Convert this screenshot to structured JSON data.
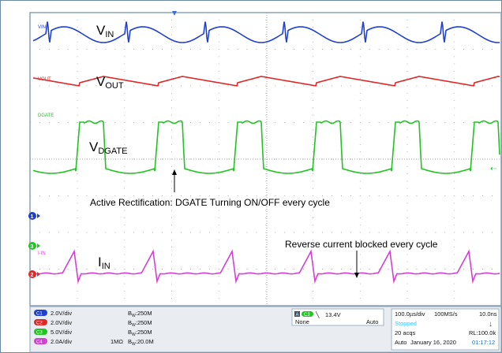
{
  "channels": [
    {
      "id": "C1",
      "color": "#1f3fcf",
      "text_color": "#ffffff",
      "scale": "2.0V/div",
      "coupling": "",
      "bw": "250M"
    },
    {
      "id": "C2",
      "color": "#e02828",
      "text_color": "#ffffff",
      "scale": "2.0V/div",
      "coupling": "",
      "bw": "250M"
    },
    {
      "id": "C3",
      "color": "#22c422",
      "text_color": "#ffffff",
      "scale": "5.0V/div",
      "coupling": "",
      "bw": "250M"
    },
    {
      "id": "C4",
      "color": "#d43fd4",
      "text_color": "#ffffff",
      "scale": "2.0A/div",
      "coupling": "1MΩ",
      "bw": "20.0M"
    }
  ],
  "bw_prefix": "B",
  "bw_sub": "W",
  "trace_tags": {
    "vin": "VIN",
    "vout": "VOUT",
    "dgate": "DGATE",
    "iin": "I-IN"
  },
  "signal_labels": {
    "vin": {
      "main": "V",
      "sub": "IN"
    },
    "vout": {
      "main": "V",
      "sub": "OUT"
    },
    "dgate": {
      "main": "V",
      "sub": "DGATE"
    },
    "iin": {
      "main": "I",
      "sub": "IN"
    }
  },
  "annotations": {
    "active_rect": "Active Rectification: DGATE Turning ON/OFF every cycle",
    "reverse": "Reverse current blocked every cycle"
  },
  "trigger": {
    "source": "C3",
    "slope_symbol": "╲",
    "level": "13.4V",
    "a_label": "A",
    "filter": "None",
    "mode": "Auto"
  },
  "timebase": {
    "scale": "100.0µs/div",
    "sample_rate": "100MS/s",
    "sample_interval": "10.0ns",
    "state": "Stopped",
    "acqs": "20 acqs",
    "record": "RL:100.0k",
    "mode": "Auto",
    "date": "January 16, 2020",
    "time": "01:17:12"
  },
  "ground_markers": [
    "1",
    "3",
    "2"
  ],
  "colors": {
    "grid_bg": "#ffffff",
    "border": "#8aa3b8",
    "panel_bg": "#e9edf2",
    "stopped": "#3cc4ff",
    "time": "#1a6fd0"
  }
}
